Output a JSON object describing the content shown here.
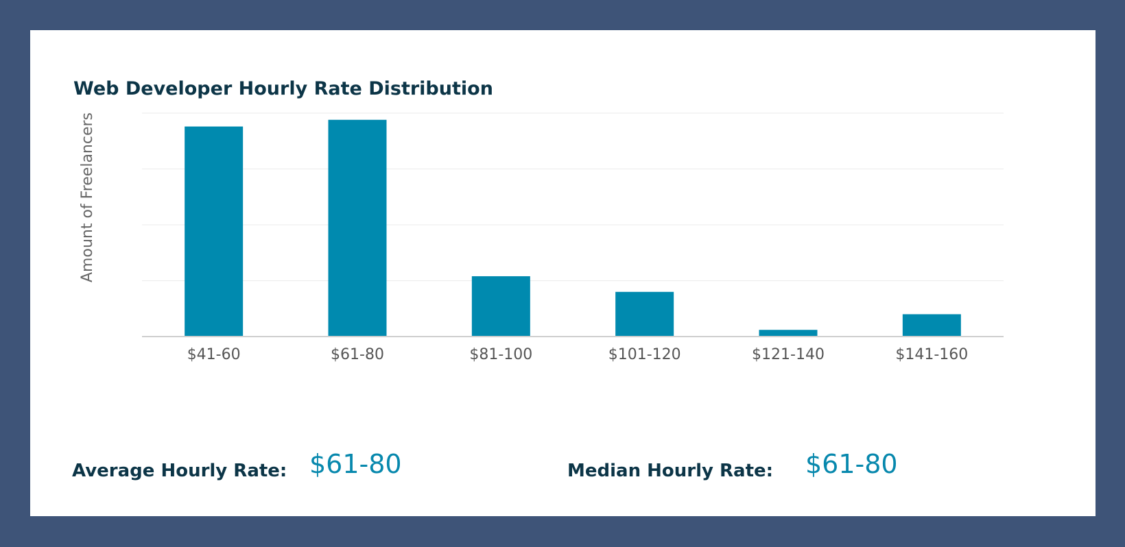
{
  "colors": {
    "background": "#3e5478",
    "card": "#ffffff",
    "title": "#0c3547",
    "bar": "#008aaf",
    "value": "#0788ad",
    "grid": "#ebebeb",
    "axis": "#cfcfcf"
  },
  "summary": {
    "average_label": "Average Hourly Rate:",
    "average_value": "$61-80",
    "median_label": "Median Hourly Rate:",
    "median_value": "$61-80"
  },
  "chart_data": {
    "type": "bar",
    "title": "Web Developer Hourly Rate Distribution",
    "xlabel": "",
    "ylabel": "Amount of Freelancers",
    "categories": [
      "$41-60",
      "$61-80",
      "$81-100",
      "$101-120",
      "$121-140",
      "$141-160"
    ],
    "values": [
      0.94,
      0.97,
      0.27,
      0.2,
      0.03,
      0.1
    ],
    "ylim": [
      0,
      1
    ],
    "y_ticks_labeled": false,
    "grid": true,
    "legend": "none"
  }
}
